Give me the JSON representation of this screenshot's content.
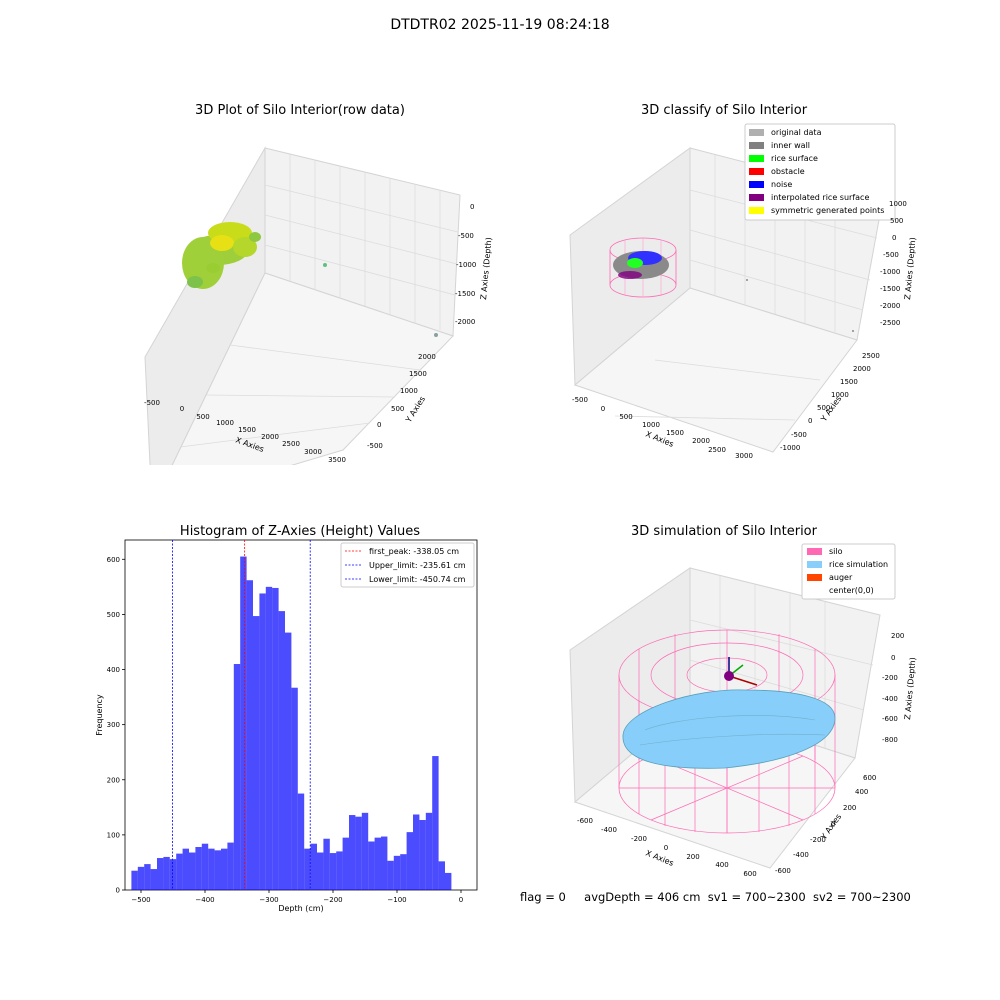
{
  "suptitle": "DTDTR02 2025-11-19 08:24:18",
  "footer": {
    "flag": "flag = 0",
    "avg": "avgDepth = 406 cm",
    "sv1": "sv1 = 700~2300",
    "sv2": "sv2 = 700~2300"
  },
  "panels": {
    "raw": {
      "title": "3D Plot of Silo Interior(row data)",
      "xlabel": "X Axies",
      "ylabel": "Y Axies",
      "zlabel": "Z Axies (Depth)",
      "xticks": [
        "-500",
        "0",
        "500",
        "1000",
        "1500",
        "2000",
        "2500",
        "3000",
        "3500"
      ],
      "yticks": [
        "-500",
        "0",
        "500",
        "1000",
        "1500",
        "2000"
      ],
      "zticks": [
        "0",
        "-500",
        "-1000",
        "-1500",
        "-2000"
      ]
    },
    "classify": {
      "title": "3D classify of Silo Interior",
      "xlabel": "X Axies",
      "ylabel": "Y Axies",
      "zlabel": "Z Axies (Depth)",
      "xticks": [
        "-500",
        "0",
        "500",
        "1000",
        "1500",
        "2000",
        "2500",
        "3000"
      ],
      "yticks": [
        "-1000",
        "-500",
        "0",
        "500",
        "1000",
        "1500",
        "2000",
        "2500"
      ],
      "zticks": [
        "1000",
        "500",
        "0",
        "-500",
        "-1000",
        "-1500",
        "-2000",
        "-2500"
      ],
      "legend": [
        {
          "label": "original data",
          "color": "#b0b0b0"
        },
        {
          "label": "inner wall",
          "color": "#808080"
        },
        {
          "label": "rice surface",
          "color": "#00ff00"
        },
        {
          "label": "obstacle",
          "color": "#ff0000"
        },
        {
          "label": "noise",
          "color": "#0000ff"
        },
        {
          "label": "interpolated rice surface",
          "color": "#800080"
        },
        {
          "label": "symmetric generated points",
          "color": "#ffff00"
        }
      ]
    },
    "simulation": {
      "title": "3D simulation of Silo Interior",
      "xlabel": "X Axies",
      "ylabel": "Y Axies",
      "zlabel": "Z Axies (Depth)",
      "xticks": [
        "-600",
        "-400",
        "-200",
        "0",
        "200",
        "400",
        "600"
      ],
      "yticks": [
        "-600",
        "-400",
        "-200",
        "0",
        "200",
        "400",
        "600"
      ],
      "zticks": [
        "200",
        "0",
        "-200",
        "-400",
        "-600",
        "-800"
      ],
      "legend": [
        {
          "label": "silo",
          "color": "#ff69b4"
        },
        {
          "label": "rice simulation",
          "color": "#87cefa"
        },
        {
          "label": "auger",
          "color": "#ff4500"
        },
        {
          "label": "center(0,0)",
          "color": "#ffffff"
        }
      ]
    }
  },
  "chart_data": {
    "type": "bar",
    "title": "Histogram of Z-Axies (Height) Values",
    "xlabel": "Depth (cm)",
    "ylabel": "Frequency",
    "xlim": [
      -525,
      25
    ],
    "ylim": [
      0,
      635
    ],
    "xticks": [
      -500,
      -400,
      -300,
      -200,
      -100,
      0
    ],
    "yticks": [
      0,
      100,
      200,
      300,
      400,
      500,
      600
    ],
    "bin_start": -515,
    "bin_width": 10,
    "color": "#0000ff",
    "values": [
      35,
      42,
      47,
      38,
      58,
      60,
      56,
      66,
      75,
      68,
      78,
      84,
      75,
      72,
      75,
      86,
      410,
      605,
      562,
      497,
      538,
      550,
      548,
      506,
      467,
      367,
      175,
      75,
      84,
      68,
      93,
      67,
      70,
      95,
      136,
      133,
      140,
      88,
      95,
      97,
      53,
      62,
      65,
      105,
      137,
      127,
      140,
      243,
      52,
      31
    ],
    "lines": [
      {
        "label": "first_peak: -338.05 cm",
        "x": -338.05,
        "color": "#ff0000"
      },
      {
        "label": "Upper_limit: -235.61 cm",
        "x": -235.61,
        "color": "#0000ff"
      },
      {
        "label": "Lower_limit: -450.74 cm",
        "x": -450.74,
        "color": "#0000ff"
      }
    ]
  }
}
